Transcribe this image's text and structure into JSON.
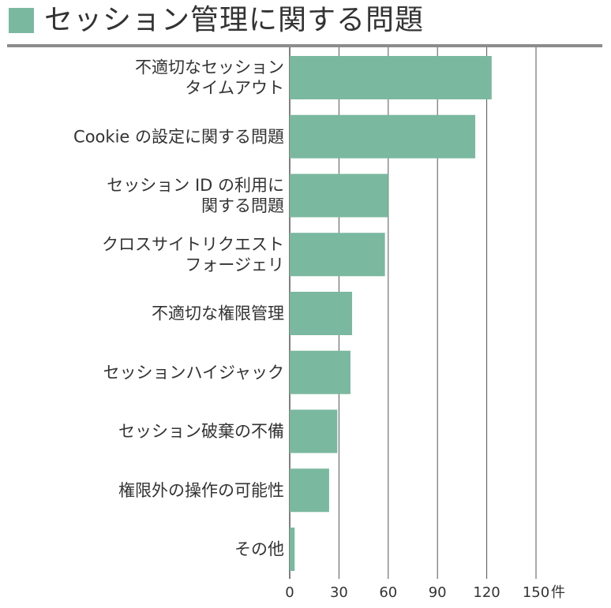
{
  "title": "セッション管理に関する問題",
  "chart_data": {
    "type": "bar",
    "orientation": "horizontal",
    "categories": [
      [
        "不適切なセッション",
        "タイムアウト"
      ],
      [
        "Cookie の設定に関する問題"
      ],
      [
        "セッション ID の利用に",
        "関する問題"
      ],
      [
        "クロスサイトリクエスト",
        "フォージェリ"
      ],
      [
        "不適切な権限管理"
      ],
      [
        "セッションハイジャック"
      ],
      [
        "セッション破棄の不備"
      ],
      [
        "権限外の操作の可能性"
      ],
      [
        "その他"
      ]
    ],
    "values": [
      123,
      113,
      60,
      58,
      38,
      37,
      29,
      24,
      3
    ],
    "xlim": [
      0,
      150
    ],
    "xticks": [
      "0",
      "30",
      "60",
      "90",
      "120",
      "150"
    ],
    "x_unit": "件",
    "grid": true,
    "bar_color": "#7bb8a0",
    "grid_color": "#555555"
  }
}
